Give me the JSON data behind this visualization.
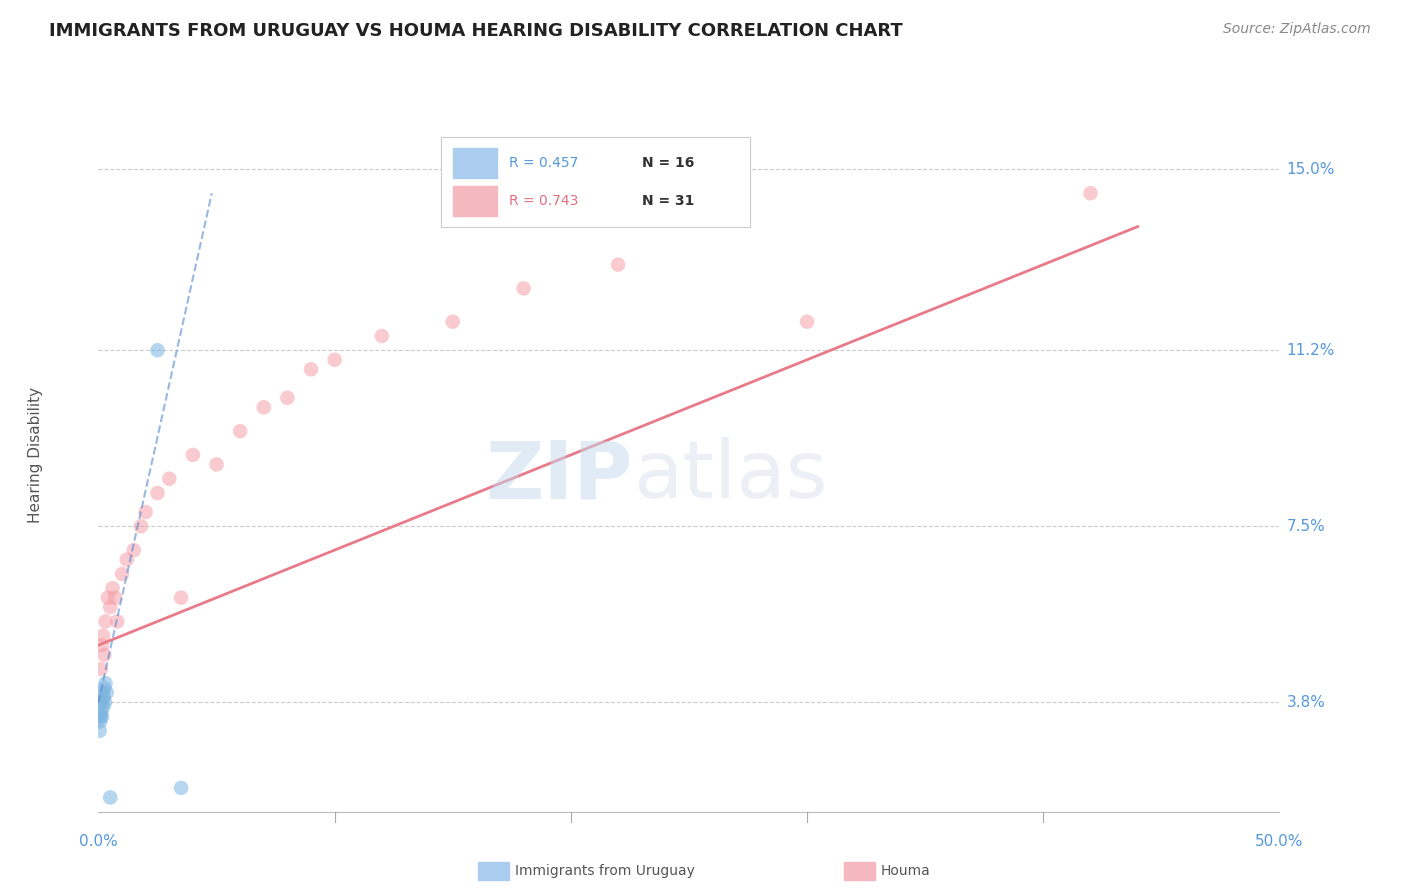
{
  "title": "IMMIGRANTS FROM URUGUAY VS HOUMA HEARING DISABILITY CORRELATION CHART",
  "source": "Source: ZipAtlas.com",
  "ylabel": "Hearing Disability",
  "ytick_values": [
    3.8,
    7.5,
    11.2,
    15.0
  ],
  "ytick_labels": [
    "3.8%",
    "7.5%",
    "11.2%",
    "15.0%"
  ],
  "xlim": [
    0.0,
    50.0
  ],
  "ylim": [
    1.5,
    16.5
  ],
  "legend_blue_r": "R = 0.457",
  "legend_blue_n": "N = 16",
  "legend_pink_r": "R = 0.743",
  "legend_pink_n": "N = 31",
  "blue_scatter_x": [
    0.05,
    0.08,
    0.1,
    0.12,
    0.15,
    0.15,
    0.18,
    0.2,
    0.22,
    0.25,
    0.28,
    0.3,
    0.35,
    0.5,
    2.5,
    3.5
  ],
  "blue_scatter_y": [
    3.2,
    3.4,
    3.5,
    3.6,
    3.5,
    3.8,
    4.0,
    3.7,
    3.9,
    4.1,
    3.8,
    4.2,
    4.0,
    1.8,
    11.2,
    2.0
  ],
  "pink_scatter_x": [
    0.1,
    0.15,
    0.2,
    0.25,
    0.3,
    0.4,
    0.5,
    0.6,
    0.7,
    0.8,
    1.0,
    1.2,
    1.5,
    1.8,
    2.0,
    2.5,
    3.0,
    3.5,
    4.0,
    5.0,
    6.0,
    7.0,
    8.0,
    9.0,
    10.0,
    12.0,
    15.0,
    18.0,
    22.0,
    30.0,
    42.0
  ],
  "pink_scatter_y": [
    4.5,
    5.0,
    5.2,
    4.8,
    5.5,
    6.0,
    5.8,
    6.2,
    6.0,
    5.5,
    6.5,
    6.8,
    7.0,
    7.5,
    7.8,
    8.2,
    8.5,
    6.0,
    9.0,
    8.8,
    9.5,
    10.0,
    10.2,
    10.8,
    11.0,
    11.5,
    11.8,
    12.5,
    13.0,
    11.8,
    14.5
  ],
  "blue_line_x": [
    0.0,
    4.8
  ],
  "blue_line_y": [
    3.8,
    14.5
  ],
  "pink_line_x": [
    0.0,
    44.0
  ],
  "pink_line_y": [
    5.0,
    13.8
  ],
  "blue_color": "#7ab3e0",
  "pink_color": "#f5a0a8",
  "blue_line_color": "#5588cc",
  "pink_line_color": "#e87a8a",
  "background_color": "#ffffff",
  "grid_color": "#cccccc",
  "watermark_zip": "ZIP",
  "watermark_atlas": "atlas",
  "tick_color": "#5599dd"
}
